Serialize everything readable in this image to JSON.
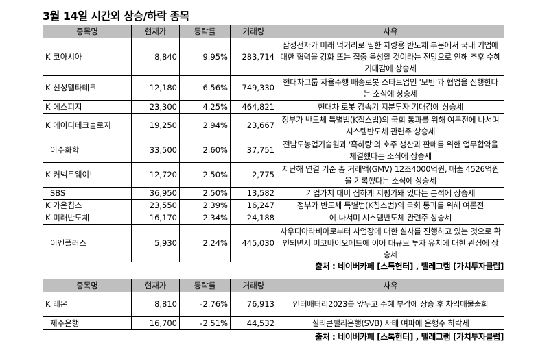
{
  "title": "3월 14일  시간외 상승/하락 종목",
  "headers": {
    "name": "종목명",
    "price": "현재가",
    "change": "등락률",
    "volume": "거래량",
    "reason": "사유"
  },
  "rising": [
    {
      "name": "K 코아시아",
      "price": "8,840",
      "change": "9.95%",
      "volume": "283,714",
      "reason": "삼성전자가 미래 먹거리로 찜한 차량용 반도체 부문에서 국내 기업에 대한 협력을 강화 또는 집중 육성할 것이라는 전망으로 인해 추후 수혜 기대감에 상승세"
    },
    {
      "name": "K 신성델타테크",
      "price": "12,180",
      "change": "6.56%",
      "volume": "749,330",
      "reason": "현대차그룹 자율주행 배송로봇 스타트업인 '모빈'과 협업을 진행한다는 소식에 상승세"
    },
    {
      "name": "K 에스피지",
      "price": "23,300",
      "change": "4.25%",
      "volume": "464,821",
      "reason": "현대차 로봇 감속기 지분투자 기대감에 상승세"
    },
    {
      "name": "K 에이디테크놀로지",
      "price": "19,250",
      "change": "2.94%",
      "volume": "23,667",
      "reason": "정부가 반도체 특별법(K칩스법)의 국회 통과를 위해 여론전에 나서며 시스템반도체 관련주 상승세"
    },
    {
      "name": "이수화학",
      "price": "33,500",
      "change": "2.60%",
      "volume": "37,751",
      "reason": "전남도농업기술원과 '흑하랑'의 호주 생산과 판매를 위한 업무협약을 체결했다는 소식에 상승세"
    },
    {
      "name": "K 커넥트웨이브",
      "price": "12,720",
      "change": "2.50%",
      "volume": "2,775",
      "reason": "지난해 연결 기준 총 거래액(GMV) 12조4000억원, 매출 4526억원을 기록했다는 소식에 상승세"
    },
    {
      "name": "SBS",
      "price": "36,950",
      "change": "2.50%",
      "volume": "13,582",
      "reason": "기업가치 대비 심하게 저평가돼 있다는 분석에 상승세"
    },
    {
      "name": "K 가온칩스",
      "price": "23,550",
      "change": "2.39%",
      "volume": "16,247",
      "reason": "정부가 반도체 특별법(K칩스법)의 국회 통과를 위해 여론전"
    },
    {
      "name": "K 미래반도체",
      "price": "16,170",
      "change": "2.34%",
      "volume": "24,188",
      "reason": "에 나서며 시스템반도체 관련주 상승세"
    },
    {
      "name": "이엔플러스",
      "price": "5,930",
      "change": "2.24%",
      "volume": "445,030",
      "reason": "사우디아라비아로부터 사업장에 대한 실사를 진행하고 있는 것으로 확인되면서 미코바이오메드에 이어 대규모 투자 유치에 대한 관심에 상승세"
    }
  ],
  "source1": "출처 : 네이버카페 [스톡헌터] , 텔레그램 [가치투자클럽]",
  "falling": [
    {
      "name": "K 레몬",
      "price": "8,810",
      "change": "-2.76%",
      "volume": "76,913",
      "reason": "인터배터리2023를 앞두고 수혜 부각에 상승 후 차익매물출회"
    },
    {
      "name": "제주은행",
      "price": "16,700",
      "change": "-2.51%",
      "volume": "44,532",
      "reason": "실리콘밸리은행(SVB) 사태 여파에 은행주 하락세"
    }
  ],
  "source2": "출처 : 네이버카페 [스톡헌터] , 텔레그램 [가치투자클럽]"
}
